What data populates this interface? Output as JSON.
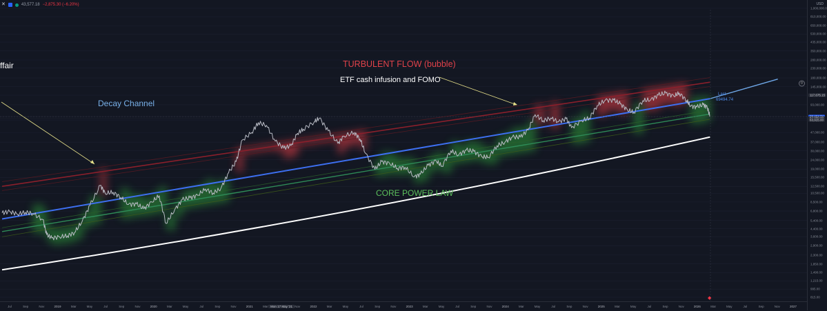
{
  "header": {
    "price": "43,577.18",
    "change": "−2,875.30 (−6.20%)",
    "currency": "USD"
  },
  "annotations": {
    "affair": "ffair",
    "decay": "Decay Channel",
    "turbulent": "TURBULENT FLOW (bubble)",
    "etf": "ETF cash infusion and FOMO",
    "core": "CORE POWER LAW"
  },
  "last_label": {
    "title": "Last",
    "value": "69494.74"
  },
  "colors": {
    "background": "#131722",
    "price_line": "#b8bbc4",
    "decay_line": "#3d6ff0",
    "upper_channel": "#8b1f2b",
    "core_line": "#2e8b57",
    "floor_line": "#ffffff",
    "extension_line": "#6fa8e8",
    "bubble_band": "#e23c45",
    "value_band": "#2fa23a"
  },
  "chart_data": {
    "type": "line",
    "title": "",
    "xlabel": "",
    "ylabel": "",
    "y_scale": "log",
    "ylim": [
      700,
      1000000
    ],
    "xlim": [
      "2018-06-01",
      "2027-02-01"
    ],
    "y_ticks": [
      "1,000,000.00",
      "810,000.00",
      "650,000.00",
      "530,000.00",
      "435,000.00",
      "350,000.00",
      "280,000.00",
      "230,000.00",
      "180,000.00",
      "145,000.00",
      "117,675.15",
      "93,000.00",
      "69,494.74",
      "67,000.00",
      "63,915.00",
      "47,000.00",
      "37,000.00",
      "30,000.00",
      "24,000.00",
      "19,000.00",
      "15,500.00",
      "12,500.00",
      "10,500.00",
      "8,500.00",
      "6,800.00",
      "5,400.00",
      "4,400.00",
      "3,600.00",
      "2,900.00",
      "2,300.00",
      "1,850.00",
      "1,490.00",
      "1,215.00",
      "995.00",
      "815.00"
    ],
    "x_ticks": [
      "Jul",
      "Sep",
      "Nov",
      "2019",
      "Mar",
      "May",
      "Jul",
      "Sep",
      "Nov",
      "2020",
      "Mar",
      "May",
      "Jul",
      "Sep",
      "Nov",
      "2021",
      "Mar",
      "Mon 17 May '21",
      "Nov",
      "2022",
      "Mar",
      "May",
      "Jul",
      "Sep",
      "Nov",
      "2023",
      "Mar",
      "May",
      "Jul",
      "Sep",
      "Nov",
      "2024",
      "Mar",
      "May",
      "Jul",
      "Sep",
      "Nov",
      "2025",
      "Mar",
      "May",
      "Jul",
      "Sep",
      "Nov",
      "2026",
      "Mar",
      "May",
      "Jul",
      "Sep",
      "Nov",
      "2027"
    ],
    "series": [
      {
        "x": [
          "2018-06-01",
          "2018-07-01",
          "2018-08-01",
          "2018-09-01",
          "2018-10-01",
          "2018-11-10",
          "2018-11-25",
          "2018-12-15",
          "2019-01-15",
          "2019-02-15",
          "2019-03-15",
          "2019-04-15",
          "2019-05-15",
          "2019-06-26",
          "2019-07-15",
          "2019-08-15",
          "2019-09-15",
          "2019-10-15",
          "2019-11-15",
          "2019-12-15",
          "2020-01-15",
          "2020-02-14",
          "2020-03-12",
          "2020-04-15",
          "2020-05-15",
          "2020-06-15",
          "2020-07-15",
          "2020-08-15",
          "2020-09-15",
          "2020-10-15",
          "2020-11-15",
          "2020-12-15",
          "2021-01-08",
          "2021-02-15",
          "2021-03-13",
          "2021-04-14",
          "2021-05-19",
          "2021-06-22",
          "2021-07-20",
          "2021-08-15",
          "2021-09-07",
          "2021-10-20",
          "2021-11-10",
          "2021-12-15",
          "2022-01-22",
          "2022-02-15",
          "2022-03-28",
          "2022-04-20",
          "2022-05-12",
          "2022-06-18",
          "2022-07-15",
          "2022-08-15",
          "2022-09-15",
          "2022-10-15",
          "2022-11-21",
          "2022-12-15",
          "2023-01-15",
          "2023-02-15",
          "2023-03-10",
          "2023-04-15",
          "2023-05-15",
          "2023-06-15",
          "2023-07-15",
          "2023-08-15",
          "2023-09-11",
          "2023-10-15",
          "2023-11-15",
          "2023-12-15",
          "2024-01-15",
          "2024-02-15",
          "2024-03-14",
          "2024-04-15",
          "2024-05-15",
          "2024-06-15",
          "2024-07-15",
          "2024-08-05",
          "2024-09-15",
          "2024-10-15",
          "2024-11-15",
          "2024-12-17",
          "2025-01-20",
          "2025-02-15",
          "2025-03-15",
          "2025-04-09",
          "2025-05-15",
          "2025-06-15",
          "2025-07-15",
          "2025-08-14",
          "2025-09-15",
          "2025-10-06",
          "2025-11-05",
          "2025-11-20",
          "2025-12-15",
          "2026-01-10",
          "2026-01-25",
          "2026-02-05"
        ],
        "y": [
          6500,
          6700,
          6300,
          6600,
          6400,
          5500,
          3800,
          3500,
          3600,
          3700,
          4000,
          5300,
          7800,
          12800,
          10500,
          10800,
          9500,
          8000,
          8100,
          7200,
          8500,
          9900,
          5000,
          7000,
          9000,
          9400,
          10000,
          11700,
          10600,
          11800,
          17500,
          23000,
          39000,
          47000,
          60000,
          56000,
          38000,
          32000,
          34000,
          46000,
          51000,
          61000,
          67000,
          49000,
          36000,
          43000,
          47000,
          40000,
          28000,
          19000,
          23000,
          22000,
          19500,
          20000,
          15800,
          16800,
          21000,
          23500,
          20500,
          30000,
          27000,
          30500,
          29500,
          26000,
          25500,
          34000,
          37000,
          42000,
          42000,
          50000,
          73000,
          63000,
          67000,
          61000,
          66000,
          53000,
          63000,
          67000,
          91000,
          104000,
          104000,
          95000,
          82000,
          77000,
          103000,
          105000,
          118000,
          124000,
          115000,
          124000,
          103000,
          90000,
          88000,
          93000,
          88000,
          69494
        ]
      },
      {
        "name": "",
        "x": [
          "2018-06-01",
          "2026-02-05"
        ],
        "y": [
          5600,
          108000
        ]
      },
      {
        "name": "",
        "x": [
          "2018-06-01",
          "2026-02-05"
        ],
        "y": [
          12500,
          162000
        ]
      },
      {
        "name": "",
        "x": [
          "2018-06-01",
          "2026-02-05"
        ],
        "y": [
          4100,
          74000
        ]
      },
      {
        "name": "",
        "x": [
          "2018-06-01",
          "2026-02-05"
        ],
        "y": [
          1600,
          42000
        ]
      },
      {
        "name": "",
        "x": [
          "2026-02-05",
          "2026-11-01"
        ],
        "y": [
          108000,
          175000
        ]
      }
    ]
  }
}
